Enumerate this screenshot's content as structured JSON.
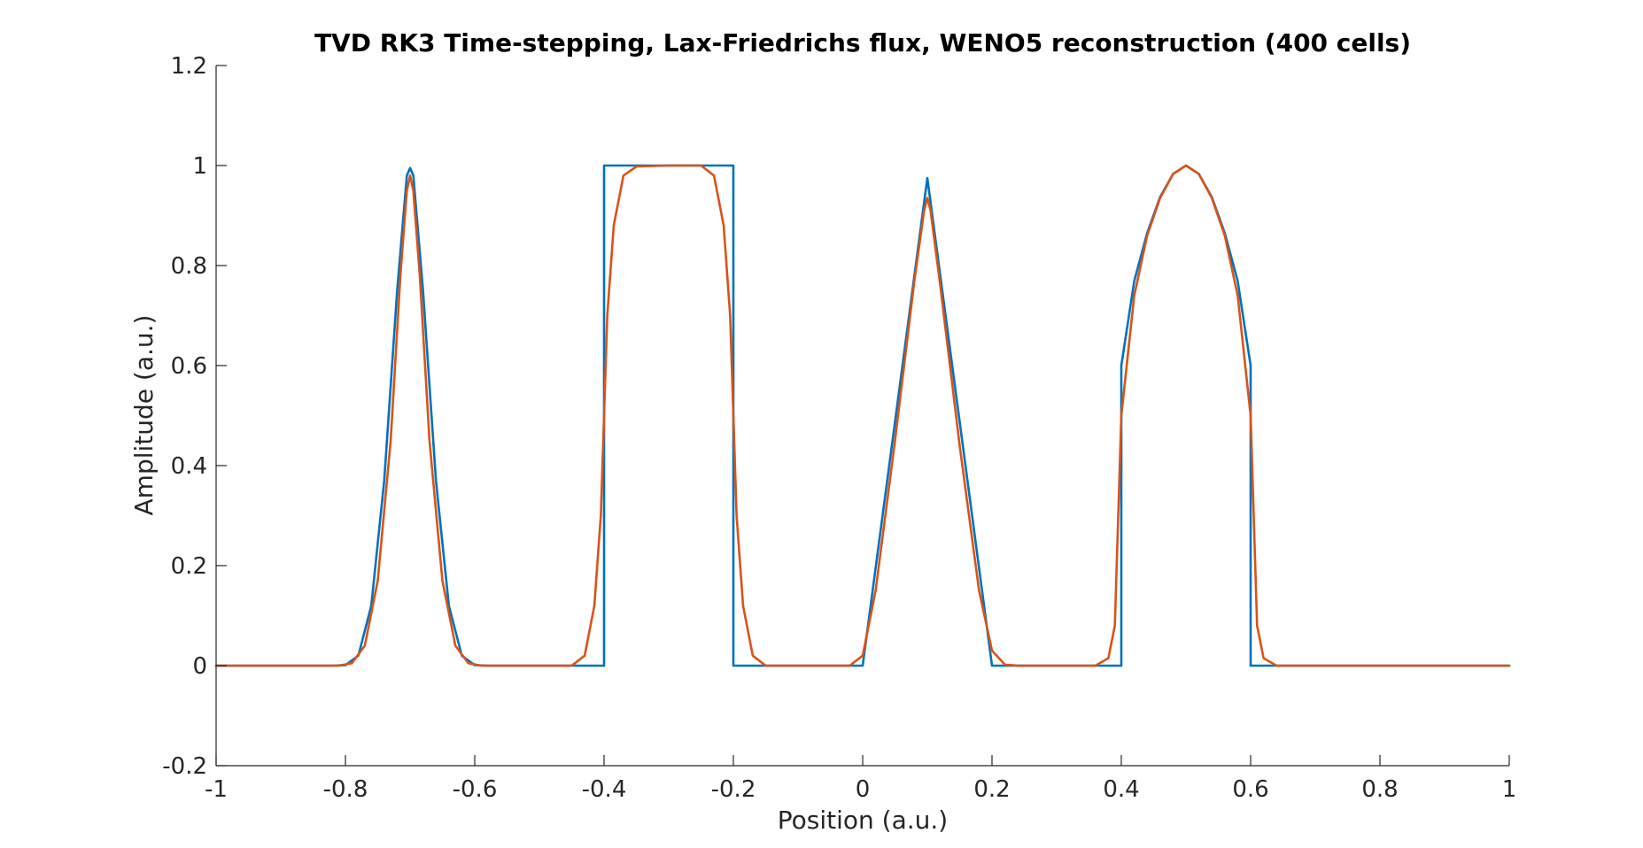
{
  "chart_data": {
    "type": "line",
    "title": "TVD RK3 Time-stepping, Lax-Friedrichs flux, WENO5 reconstruction (400 cells)",
    "xlabel": "Position (a.u.)",
    "ylabel": "Amplitude (a.u.)",
    "xlim": [
      -1,
      1
    ],
    "ylim": [
      -0.2,
      1.2
    ],
    "xticks": [
      -1,
      -0.8,
      -0.6,
      -0.4,
      -0.2,
      0,
      0.2,
      0.4,
      0.6,
      0.8,
      1
    ],
    "xtick_labels": [
      "-1",
      "-0.8",
      "-0.6",
      "-0.4",
      "-0.2",
      "0",
      "0.2",
      "0.4",
      "0.6",
      "0.8",
      "1"
    ],
    "yticks": [
      -0.2,
      0,
      0.2,
      0.4,
      0.6,
      0.8,
      1,
      1.2
    ],
    "ytick_labels": [
      "-0.2",
      "0",
      "0.2",
      "0.4",
      "0.6",
      "0.8",
      "1",
      "1.2"
    ],
    "grid": false,
    "legend": "none",
    "series": [
      {
        "color": "#0072BD",
        "points": [
          [
            -1,
            0
          ],
          [
            -0.82,
            0
          ],
          [
            -0.8,
            0.001
          ],
          [
            -0.78,
            0.02
          ],
          [
            -0.76,
            0.12
          ],
          [
            -0.74,
            0.37
          ],
          [
            -0.72,
            0.75
          ],
          [
            -0.705,
            0.98
          ],
          [
            -0.7,
            0.995
          ],
          [
            -0.695,
            0.98
          ],
          [
            -0.68,
            0.75
          ],
          [
            -0.66,
            0.37
          ],
          [
            -0.64,
            0.12
          ],
          [
            -0.62,
            0.02
          ],
          [
            -0.6,
            0.001
          ],
          [
            -0.58,
            0
          ],
          [
            -0.4,
            0
          ],
          [
            -0.4,
            1
          ],
          [
            -0.2,
            1
          ],
          [
            -0.2,
            0
          ],
          [
            0,
            0
          ],
          [
            0.1,
            0.975
          ],
          [
            0.2,
            0
          ],
          [
            0.4,
            0
          ],
          [
            0.4,
            0.6
          ],
          [
            0.42,
            0.769
          ],
          [
            0.44,
            0.865
          ],
          [
            0.46,
            0.937
          ],
          [
            0.48,
            0.983
          ],
          [
            0.5,
            1
          ],
          [
            0.52,
            0.983
          ],
          [
            0.54,
            0.937
          ],
          [
            0.56,
            0.865
          ],
          [
            0.58,
            0.769
          ],
          [
            0.6,
            0.6
          ],
          [
            0.6,
            0
          ],
          [
            1,
            0
          ]
        ]
      },
      {
        "color": "#D95319",
        "points": [
          [
            -1,
            0
          ],
          [
            -0.81,
            0
          ],
          [
            -0.79,
            0.005
          ],
          [
            -0.77,
            0.04
          ],
          [
            -0.75,
            0.17
          ],
          [
            -0.73,
            0.45
          ],
          [
            -0.715,
            0.78
          ],
          [
            -0.705,
            0.95
          ],
          [
            -0.7,
            0.98
          ],
          [
            -0.695,
            0.95
          ],
          [
            -0.685,
            0.78
          ],
          [
            -0.67,
            0.45
          ],
          [
            -0.65,
            0.17
          ],
          [
            -0.63,
            0.04
          ],
          [
            -0.61,
            0.005
          ],
          [
            -0.59,
            0
          ],
          [
            -0.45,
            0
          ],
          [
            -0.43,
            0.02
          ],
          [
            -0.415,
            0.12
          ],
          [
            -0.405,
            0.3
          ],
          [
            -0.4,
            0.5
          ],
          [
            -0.395,
            0.7
          ],
          [
            -0.385,
            0.88
          ],
          [
            -0.37,
            0.98
          ],
          [
            -0.35,
            0.998
          ],
          [
            -0.3,
            1
          ],
          [
            -0.25,
            1
          ],
          [
            -0.23,
            0.98
          ],
          [
            -0.215,
            0.88
          ],
          [
            -0.205,
            0.7
          ],
          [
            -0.2,
            0.5
          ],
          [
            -0.195,
            0.3
          ],
          [
            -0.185,
            0.12
          ],
          [
            -0.17,
            0.02
          ],
          [
            -0.15,
            0
          ],
          [
            -0.02,
            0
          ],
          [
            0,
            0.02
          ],
          [
            0.02,
            0.15
          ],
          [
            0.05,
            0.45
          ],
          [
            0.08,
            0.77
          ],
          [
            0.095,
            0.91
          ],
          [
            0.1,
            0.935
          ],
          [
            0.105,
            0.91
          ],
          [
            0.12,
            0.76
          ],
          [
            0.15,
            0.44
          ],
          [
            0.18,
            0.15
          ],
          [
            0.2,
            0.03
          ],
          [
            0.22,
            0.002
          ],
          [
            0.24,
            0
          ],
          [
            0.36,
            0
          ],
          [
            0.38,
            0.015
          ],
          [
            0.39,
            0.08
          ],
          [
            0.4,
            0.5
          ],
          [
            0.41,
            0.62
          ],
          [
            0.42,
            0.74
          ],
          [
            0.44,
            0.86
          ],
          [
            0.46,
            0.935
          ],
          [
            0.48,
            0.983
          ],
          [
            0.5,
            1
          ],
          [
            0.52,
            0.983
          ],
          [
            0.54,
            0.935
          ],
          [
            0.56,
            0.86
          ],
          [
            0.58,
            0.74
          ],
          [
            0.59,
            0.62
          ],
          [
            0.6,
            0.5
          ],
          [
            0.61,
            0.08
          ],
          [
            0.62,
            0.015
          ],
          [
            0.64,
            0
          ],
          [
            1,
            0
          ]
        ]
      }
    ]
  }
}
